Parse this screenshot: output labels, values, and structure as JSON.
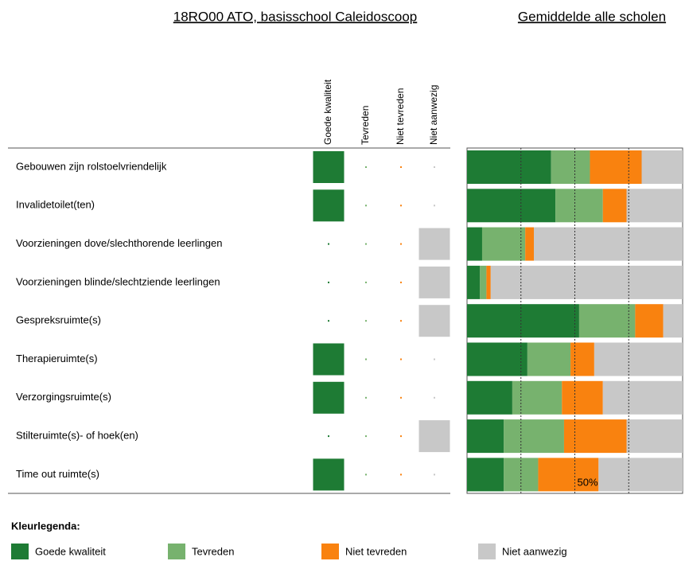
{
  "school_title": "18RO00 ATO, basisschool Caleidoscoop",
  "school_answers": [
    0,
    0,
    3,
    3,
    3,
    0,
    0,
    3,
    0
  ],
  "legend_title": "Kleurlegenda:",
  "chart_data": {
    "type": "stacked-bar",
    "orientation": "horizontal",
    "title": "Gemiddelde alle scholen",
    "categories": [
      "Gebouwen zijn rolstoelvriendelijk",
      "Invalidetoilet(ten)",
      "Voorzieningen dove/slechthorende leerlingen",
      "Voorzieningen blinde/slechtziende leerlingen",
      "Gespreksruimte(s)",
      "Therapieruimte(s)",
      "Verzorgingsruimte(s)",
      "Stilteruimte(s)- of hoek(en)",
      "Time out ruimte(s)"
    ],
    "series": [
      {
        "name": "Goede kwaliteit",
        "color": "#1e7b34",
        "values": [
          39,
          41,
          7,
          6,
          52,
          28,
          21,
          17,
          17
        ]
      },
      {
        "name": "Tevreden",
        "color": "#77b26e",
        "values": [
          18,
          22,
          20,
          3,
          26,
          20,
          23,
          28,
          16
        ]
      },
      {
        "name": "Niet tevreden",
        "color": "#f9820f",
        "values": [
          24,
          11,
          4,
          2,
          13,
          11,
          19,
          29,
          28
        ]
      },
      {
        "name": "Niet aanwezig",
        "color": "#c8c8c8",
        "values": [
          19,
          26,
          69,
          89,
          9,
          41,
          37,
          26,
          39
        ]
      }
    ],
    "xlim": [
      0,
      100
    ],
    "grid_lines": [
      25,
      50,
      75
    ],
    "xticks": [
      {
        "value": 50,
        "label": "50%"
      }
    ]
  }
}
